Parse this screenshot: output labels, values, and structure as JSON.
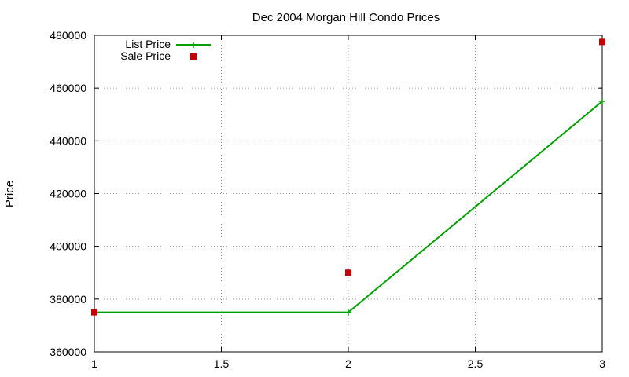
{
  "chart_data": {
    "type": "line",
    "title": "Dec 2004 Morgan Hill Condo Prices",
    "xlabel": "",
    "ylabel": "Price",
    "xlim": [
      1,
      3
    ],
    "ylim": [
      360000,
      480000
    ],
    "xticks": [
      "1",
      "1.5",
      "2",
      "2.5",
      "3"
    ],
    "xtick_values": [
      1,
      1.5,
      2,
      2.5,
      3
    ],
    "yticks": [
      "360000",
      "380000",
      "400000",
      "420000",
      "440000",
      "460000",
      "480000"
    ],
    "ytick_values": [
      360000,
      380000,
      400000,
      420000,
      440000,
      460000,
      480000
    ],
    "grid": true,
    "legend_position": "top-left",
    "series": [
      {
        "name": "List Price",
        "style": "linespoints",
        "marker": "plus",
        "color": "#00a000",
        "x": [
          1,
          2,
          3
        ],
        "y": [
          375000,
          375000,
          455000
        ]
      },
      {
        "name": "Sale Price",
        "style": "points",
        "marker": "square",
        "color": "#c00000",
        "x": [
          1,
          2,
          3
        ],
        "y": [
          375000,
          390000,
          477500
        ]
      }
    ]
  }
}
